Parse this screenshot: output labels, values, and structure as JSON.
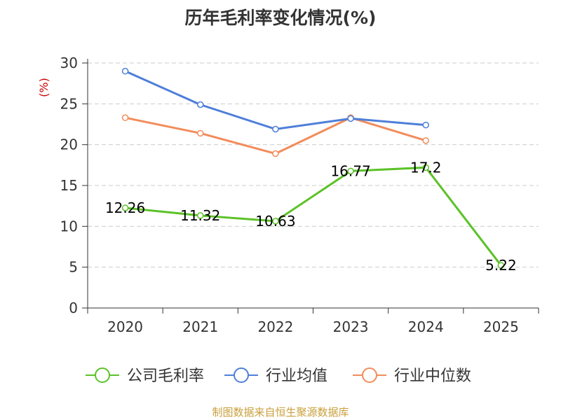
{
  "title": "历年毛利率变化情况(%)",
  "source": "制图数据来自恒生聚源数据库",
  "chart_data": {
    "type": "line",
    "title": "历年毛利率变化情况(%)",
    "yunit": "(%)",
    "categories": [
      "2020",
      "2021",
      "2022",
      "2023",
      "2024",
      "2025"
    ],
    "ylim": [
      0,
      30
    ],
    "yticks": [
      0,
      5,
      10,
      15,
      20,
      25,
      30
    ],
    "grid": true,
    "legend_position": "bottom",
    "series": [
      {
        "name": "公司毛利率",
        "color": "#5bc227",
        "values": [
          12.26,
          11.32,
          10.63,
          16.77,
          17.2,
          5.22
        ],
        "labels": [
          "12.26",
          "11.32",
          "10.63",
          "16.77",
          "17.2",
          "5.22"
        ]
      },
      {
        "name": "行业均值",
        "color": "#4e7fd9",
        "values": [
          29.0,
          24.9,
          21.9,
          23.2,
          22.4,
          null
        ]
      },
      {
        "name": "行业中位数",
        "color": "#f28c5b",
        "values": [
          23.3,
          21.4,
          18.9,
          23.3,
          20.5,
          null
        ]
      }
    ]
  }
}
